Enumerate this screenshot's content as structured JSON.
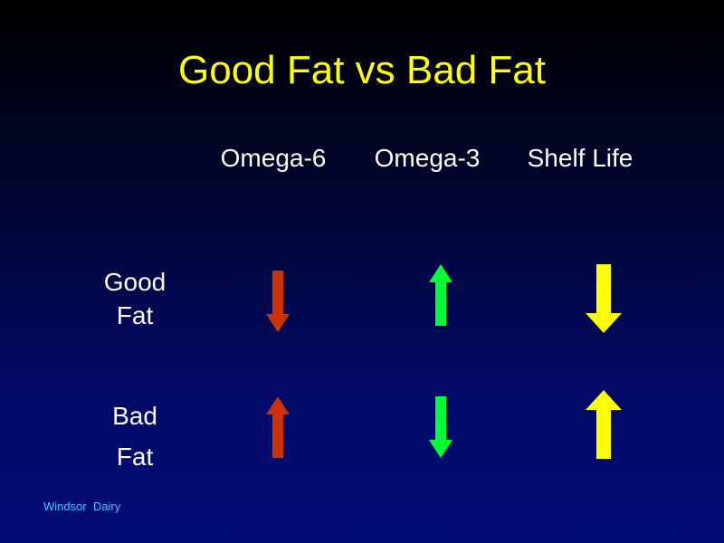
{
  "slide": {
    "title": "Good Fat vs Bad Fat",
    "columns": [
      {
        "label": "Omega-6"
      },
      {
        "label": "Omega-3"
      },
      {
        "label": "Shelf Life"
      }
    ],
    "rows": [
      {
        "label_line1": "Good",
        "label_line2": "Fat",
        "cells": [
          {
            "icon": "down-arrow-icon",
            "direction": "down",
            "color": "#cc3300"
          },
          {
            "icon": "up-arrow-icon",
            "direction": "up",
            "color": "#00ff33"
          },
          {
            "icon": "down-arrow-icon",
            "direction": "down",
            "color": "#ffff00"
          }
        ]
      },
      {
        "label_line1": "Bad",
        "label_line2": "Fat",
        "cells": [
          {
            "icon": "up-arrow-icon",
            "direction": "up",
            "color": "#cc3300"
          },
          {
            "icon": "down-arrow-icon",
            "direction": "down",
            "color": "#00ff33"
          },
          {
            "icon": "up-arrow-icon",
            "direction": "up",
            "color": "#ffff00"
          }
        ]
      }
    ],
    "footer": "Windsor  Dairy",
    "colors": {
      "title": "#ffff00",
      "text": "#ffffff",
      "footer": "#33ccff",
      "background_top": "#000000",
      "background_bottom": "#030d78"
    }
  }
}
